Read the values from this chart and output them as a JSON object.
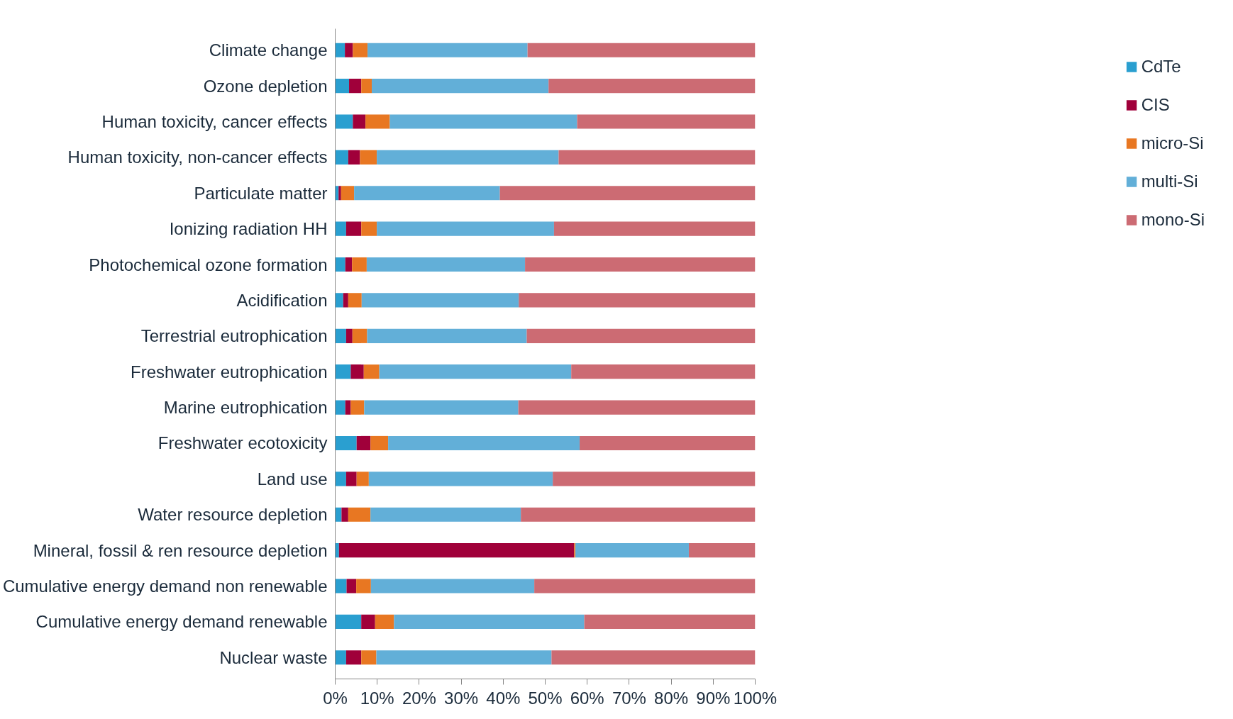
{
  "chart_data": {
    "type": "bar",
    "orientation": "horizontal",
    "stacked": true,
    "categories": [
      "Climate change",
      "Ozone depletion",
      "Human toxicity, cancer effects",
      "Human toxicity, non-cancer effects",
      "Particulate matter",
      "Ionizing radiation HH",
      "Photochemical ozone formation",
      "Acidification",
      "Terrestrial eutrophication",
      "Freshwater eutrophication",
      "Marine eutrophication",
      "Freshwater ecotoxicity",
      "Land use",
      "Water resource depletion",
      "Mineral, fossil & ren resource depletion",
      "Cumulative energy demand non renewable",
      "Cumulative energy demand renewable",
      "Nuclear waste"
    ],
    "series": [
      {
        "name": "CdTe",
        "color": "#2a9fd0",
        "values": [
          2.3,
          3.3,
          4.2,
          3.1,
          0.8,
          2.6,
          2.4,
          1.9,
          2.6,
          3.7,
          2.4,
          5.1,
          2.6,
          1.5,
          0.9,
          2.7,
          6.2,
          2.6
        ]
      },
      {
        "name": "CIS",
        "color": "#a0003a",
        "values": [
          1.9,
          2.9,
          3.0,
          2.8,
          0.6,
          3.6,
          1.6,
          1.2,
          1.5,
          3.1,
          1.3,
          3.3,
          2.5,
          1.6,
          56.0,
          2.3,
          3.3,
          3.6
        ]
      },
      {
        "name": "micro-Si",
        "color": "#e87722",
        "values": [
          3.5,
          2.5,
          5.8,
          4.0,
          3.1,
          3.7,
          3.5,
          3.2,
          3.5,
          3.7,
          3.2,
          4.2,
          2.9,
          5.3,
          0.3,
          3.5,
          4.5,
          3.6
        ]
      },
      {
        "name": "multi-Si",
        "color": "#62afd8",
        "values": [
          38.1,
          42.1,
          44.6,
          43.3,
          34.7,
          42.2,
          37.7,
          37.4,
          38.0,
          45.7,
          36.7,
          45.6,
          43.8,
          35.8,
          27.0,
          38.9,
          45.3,
          41.7
        ]
      },
      {
        "name": "mono-Si",
        "color": "#cc6b73",
        "values": [
          54.2,
          49.2,
          42.4,
          46.8,
          60.8,
          47.9,
          54.8,
          56.3,
          54.4,
          43.8,
          56.4,
          41.8,
          48.2,
          55.8,
          15.8,
          52.6,
          40.7,
          48.5
        ]
      }
    ],
    "xlim": [
      0,
      100
    ],
    "xticks": [
      {
        "value": 0,
        "label": "0%"
      },
      {
        "value": 10,
        "label": "10%"
      },
      {
        "value": 20,
        "label": "20%"
      },
      {
        "value": 30,
        "label": "30%"
      },
      {
        "value": 40,
        "label": "40%"
      },
      {
        "value": 50,
        "label": "50%"
      },
      {
        "value": 60,
        "label": "60%"
      },
      {
        "value": 70,
        "label": "70%"
      },
      {
        "value": 80,
        "label": "80%"
      },
      {
        "value": 90,
        "label": "90%"
      },
      {
        "value": 100,
        "label": "100%"
      }
    ],
    "grid": false,
    "legend": "right"
  }
}
